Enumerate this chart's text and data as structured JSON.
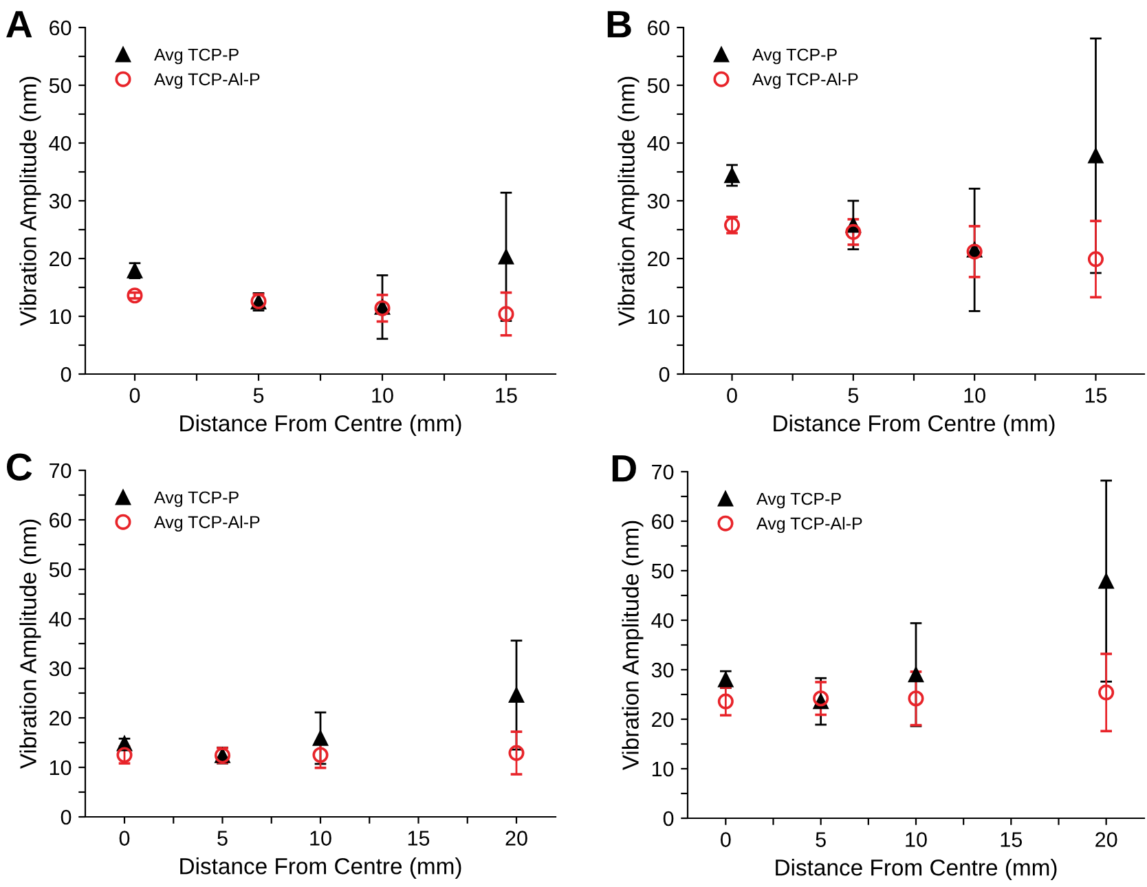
{
  "chart_data": [
    {
      "type": "scatter",
      "title": "A",
      "xlabel": "Distance From Centre (mm)",
      "ylabel": "Vibration Amplitude (nm)",
      "x": [
        0,
        5,
        10,
        15
      ],
      "xlim": [
        -2,
        17
      ],
      "xticks": [
        0,
        {
          "value": 2.5,
          "label": null
        },
        5,
        {
          "value": 7.5,
          "label": null
        },
        10,
        {
          "value": 12.5,
          "label": null
        },
        15
      ],
      "ylim": [
        0,
        60
      ],
      "yticks": [
        0,
        {
          "value": 5,
          "label": null
        },
        10,
        {
          "value": 15,
          "label": null
        },
        20,
        {
          "value": 25,
          "label": null
        },
        30,
        {
          "value": 35,
          "label": null
        },
        40,
        {
          "value": 45,
          "label": null
        },
        50,
        {
          "value": 55,
          "label": null
        },
        60
      ],
      "grid": false,
      "legend": "top left",
      "series": [
        {
          "name": "Avg TCP-P",
          "color": "#000000",
          "marker": "triangle",
          "values": [
            17.9,
            12.5,
            11.6,
            20.3
          ],
          "errors": [
            1.3,
            1.5,
            5.5,
            11.1
          ]
        },
        {
          "name": "Avg TCP-Al-P",
          "color": "#e8242a",
          "marker": "circle",
          "values": [
            13.6,
            12.6,
            11.4,
            10.4
          ],
          "errors": [
            0.5,
            1.2,
            2.3,
            3.7
          ]
        }
      ]
    },
    {
      "type": "scatter",
      "title": "B",
      "xlabel": "Distance From Centre (mm)",
      "ylabel": "Vibration Amplitude (nm)",
      "x": [
        0,
        5,
        10,
        15
      ],
      "xlim": [
        -2,
        17
      ],
      "xticks": [
        0,
        {
          "value": 2.5,
          "label": null
        },
        5,
        {
          "value": 7.5,
          "label": null
        },
        10,
        {
          "value": 12.5,
          "label": null
        },
        15
      ],
      "ylim": [
        0,
        60
      ],
      "yticks": [
        0,
        {
          "value": 5,
          "label": null
        },
        10,
        {
          "value": 15,
          "label": null
        },
        20,
        {
          "value": 25,
          "label": null
        },
        30,
        {
          "value": 35,
          "label": null
        },
        40,
        {
          "value": 45,
          "label": null
        },
        50,
        {
          "value": 55,
          "label": null
        },
        60
      ],
      "grid": false,
      "legend": "top left",
      "series": [
        {
          "name": "Avg TCP-P",
          "color": "#000000",
          "marker": "triangle",
          "values": [
            34.4,
            25.8,
            21.5,
            37.8
          ],
          "errors": [
            1.8,
            4.2,
            10.6,
            20.3
          ]
        },
        {
          "name": "Avg TCP-Al-P",
          "color": "#e8242a",
          "marker": "circle",
          "values": [
            25.8,
            24.6,
            21.2,
            19.9
          ],
          "errors": [
            1.4,
            2.2,
            4.4,
            6.6
          ]
        }
      ]
    },
    {
      "type": "scatter",
      "title": "C",
      "xlabel": "Distance From Centre (mm)",
      "ylabel": "Vibration Amplitude (nm)",
      "x": [
        0,
        5,
        10,
        20
      ],
      "xlim": [
        -2,
        22
      ],
      "xticks": [
        0,
        {
          "value": 2.5,
          "label": null
        },
        5,
        {
          "value": 7.5,
          "label": null
        },
        10,
        {
          "value": 12.5,
          "label": null
        },
        15,
        {
          "value": 17.5,
          "label": null
        },
        20
      ],
      "ylim": [
        0,
        70
      ],
      "yticks": [
        0,
        {
          "value": 5,
          "label": null
        },
        10,
        {
          "value": 15,
          "label": null
        },
        20,
        {
          "value": 25,
          "label": null
        },
        30,
        {
          "value": 35,
          "label": null
        },
        40,
        {
          "value": 45,
          "label": null
        },
        50,
        {
          "value": 55,
          "label": null
        },
        60,
        {
          "value": 65,
          "label": null
        },
        70
      ],
      "grid": false,
      "legend": "top left",
      "series": [
        {
          "name": "Avg TCP-P",
          "color": "#000000",
          "marker": "triangle",
          "values": [
            14.8,
            12.4,
            15.9,
            24.6
          ],
          "errors": [
            1.0,
            1.6,
            5.2,
            11.0
          ]
        },
        {
          "name": "Avg TCP-Al-P",
          "color": "#e8242a",
          "marker": "circle",
          "values": [
            12.5,
            12.4,
            12.5,
            12.9
          ],
          "errors": [
            1.7,
            1.5,
            2.6,
            4.3
          ]
        }
      ]
    },
    {
      "type": "scatter",
      "title": "D",
      "xlabel": "Distance From Centre (mm)",
      "ylabel": "Vibration Amplitude (nm)",
      "x": [
        0,
        5,
        10,
        20
      ],
      "xlim": [
        -2,
        22
      ],
      "xticks": [
        0,
        {
          "value": 2.5,
          "label": null
        },
        5,
        {
          "value": 7.5,
          "label": null
        },
        10,
        {
          "value": 12.5,
          "label": null
        },
        15,
        {
          "value": 17.5,
          "label": null
        },
        20
      ],
      "ylim": [
        0,
        70
      ],
      "yticks": [
        0,
        {
          "value": 5,
          "label": null
        },
        10,
        {
          "value": 15,
          "label": null
        },
        20,
        {
          "value": 25,
          "label": null
        },
        30,
        {
          "value": 35,
          "label": null
        },
        40,
        {
          "value": 45,
          "label": null
        },
        50,
        {
          "value": 55,
          "label": null
        },
        60,
        {
          "value": 65,
          "label": null
        },
        70
      ],
      "grid": false,
      "legend": "top left",
      "series": [
        {
          "name": "Avg TCP-P",
          "color": "#000000",
          "marker": "triangle",
          "values": [
            28.0,
            23.6,
            29.0,
            47.9
          ],
          "errors": [
            1.7,
            4.7,
            10.4,
            20.3
          ]
        },
        {
          "name": "Avg TCP-Al-P",
          "color": "#e8242a",
          "marker": "circle",
          "values": [
            23.6,
            24.2,
            24.2,
            25.4
          ],
          "errors": [
            2.8,
            3.3,
            5.4,
            7.8
          ]
        }
      ]
    }
  ]
}
